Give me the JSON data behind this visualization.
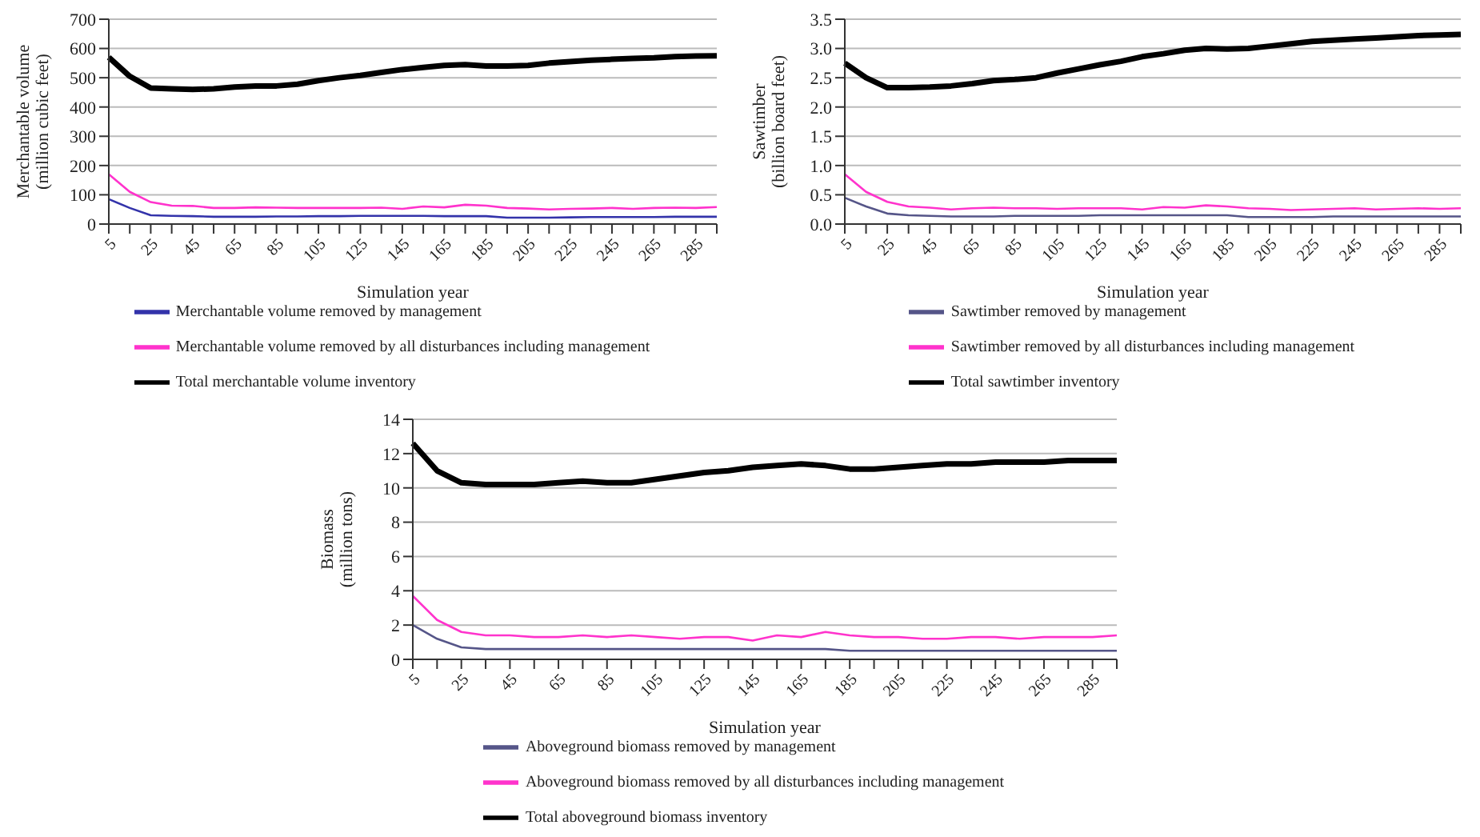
{
  "chart_data": [
    {
      "type": "line",
      "xlabel": "Simulation year",
      "ylabel": "Merchantable volume\n(million cubic feet)",
      "categories": [
        "5",
        null,
        "25",
        null,
        "45",
        null,
        "65",
        null,
        "85",
        null,
        "105",
        null,
        "125",
        null,
        "145",
        null,
        "165",
        null,
        "185",
        null,
        "205",
        null,
        "225",
        null,
        "245",
        null,
        "265",
        null,
        "285",
        null
      ],
      "ylim": [
        0,
        700
      ],
      "yticks": [
        0,
        100,
        200,
        300,
        400,
        500,
        600,
        700
      ],
      "grid": "y",
      "legend": "bottom",
      "series": [
        {
          "name": "Merchantable volume removed by management",
          "color": "#3333aa",
          "values": [
            85,
            55,
            30,
            28,
            27,
            25,
            25,
            25,
            26,
            26,
            27,
            27,
            28,
            28,
            28,
            28,
            27,
            27,
            27,
            22,
            22,
            22,
            23,
            24,
            24,
            24,
            24,
            25,
            25,
            25
          ]
        },
        {
          "name": "Merchantable volume removed by all disturbances including management",
          "color": "#ff33cc",
          "values": [
            170,
            110,
            75,
            63,
            62,
            55,
            55,
            57,
            56,
            55,
            55,
            55,
            55,
            56,
            52,
            60,
            57,
            66,
            63,
            55,
            53,
            50,
            52,
            53,
            55,
            52,
            55,
            56,
            55,
            58
          ]
        },
        {
          "name": "Total merchantable volume inventory",
          "color": "#000000",
          "values": [
            570,
            505,
            465,
            462,
            460,
            462,
            468,
            472,
            472,
            478,
            490,
            500,
            508,
            518,
            528,
            535,
            542,
            545,
            540,
            540,
            542,
            550,
            555,
            560,
            563,
            566,
            568,
            572,
            574,
            575
          ]
        }
      ]
    },
    {
      "type": "line",
      "xlabel": "Simulation year",
      "ylabel": "Sawtimber\n(billion board feet)",
      "categories": [
        "5",
        null,
        "25",
        null,
        "45",
        null,
        "65",
        null,
        "85",
        null,
        "105",
        null,
        "125",
        null,
        "145",
        null,
        "165",
        null,
        "185",
        null,
        "205",
        null,
        "225",
        null,
        "245",
        null,
        "265",
        null,
        "285",
        null
      ],
      "ylim": [
        0,
        3.5
      ],
      "yticks": [
        {
          "value": 0,
          "label": "0.0"
        },
        {
          "value": 0.5,
          "label": "0.5"
        },
        {
          "value": 1,
          "label": "1.0"
        },
        {
          "value": 1.5,
          "label": "1.5"
        },
        {
          "value": 2,
          "label": "2.0"
        },
        {
          "value": 2.5,
          "label": "2.5"
        },
        {
          "value": 3,
          "label": "3.0"
        },
        {
          "value": 3.5,
          "label": "3.5"
        }
      ],
      "grid": "y",
      "legend": "bottom",
      "series": [
        {
          "name": "Sawtimber removed by management",
          "color": "#555588",
          "values": [
            0.45,
            0.3,
            0.18,
            0.15,
            0.14,
            0.13,
            0.13,
            0.13,
            0.14,
            0.14,
            0.14,
            0.14,
            0.15,
            0.15,
            0.15,
            0.15,
            0.15,
            0.15,
            0.15,
            0.12,
            0.12,
            0.12,
            0.12,
            0.13,
            0.13,
            0.13,
            0.13,
            0.13,
            0.13,
            0.13
          ]
        },
        {
          "name": "Sawtimber removed by all disturbances including management",
          "color": "#ff33cc",
          "values": [
            0.85,
            0.55,
            0.38,
            0.3,
            0.28,
            0.25,
            0.27,
            0.28,
            0.27,
            0.27,
            0.26,
            0.27,
            0.27,
            0.27,
            0.25,
            0.29,
            0.28,
            0.32,
            0.3,
            0.27,
            0.26,
            0.24,
            0.25,
            0.26,
            0.27,
            0.25,
            0.26,
            0.27,
            0.26,
            0.27
          ]
        },
        {
          "name": "Total sawtimber inventory",
          "color": "#000000",
          "values": [
            2.75,
            2.5,
            2.33,
            2.33,
            2.34,
            2.36,
            2.4,
            2.45,
            2.47,
            2.5,
            2.58,
            2.65,
            2.72,
            2.78,
            2.86,
            2.91,
            2.97,
            3.0,
            2.99,
            3.0,
            3.04,
            3.08,
            3.12,
            3.14,
            3.16,
            3.18,
            3.2,
            3.22,
            3.23,
            3.24
          ]
        }
      ]
    },
    {
      "type": "line",
      "xlabel": "Simulation year",
      "ylabel": "Biomass\n(million  tons)",
      "categories": [
        "5",
        null,
        "25",
        null,
        "45",
        null,
        "65",
        null,
        "85",
        null,
        "105",
        null,
        "125",
        null,
        "145",
        null,
        "165",
        null,
        "185",
        null,
        "205",
        null,
        "225",
        null,
        "245",
        null,
        "265",
        null,
        "285",
        null
      ],
      "ylim": [
        0,
        14
      ],
      "yticks": [
        0,
        2,
        4,
        6,
        8,
        10,
        12,
        14
      ],
      "grid": "y",
      "legend": "bottom",
      "series": [
        {
          "name": "Aboveground biomass removed by management",
          "color": "#555588",
          "values": [
            2.0,
            1.2,
            0.7,
            0.6,
            0.6,
            0.6,
            0.6,
            0.6,
            0.6,
            0.6,
            0.6,
            0.6,
            0.6,
            0.6,
            0.6,
            0.6,
            0.6,
            0.6,
            0.5,
            0.5,
            0.5,
            0.5,
            0.5,
            0.5,
            0.5,
            0.5,
            0.5,
            0.5,
            0.5,
            0.5
          ]
        },
        {
          "name": "Aboveground biomass removed by all disturbances including management",
          "color": "#ff33cc",
          "values": [
            3.7,
            2.3,
            1.6,
            1.4,
            1.4,
            1.3,
            1.3,
            1.4,
            1.3,
            1.4,
            1.3,
            1.2,
            1.3,
            1.3,
            1.1,
            1.4,
            1.3,
            1.6,
            1.4,
            1.3,
            1.3,
            1.2,
            1.2,
            1.3,
            1.3,
            1.2,
            1.3,
            1.3,
            1.3,
            1.4
          ]
        },
        {
          "name": "Total aboveground biomass inventory",
          "color": "#000000",
          "values": [
            12.6,
            11.0,
            10.3,
            10.2,
            10.2,
            10.2,
            10.3,
            10.4,
            10.3,
            10.3,
            10.5,
            10.7,
            10.9,
            11.0,
            11.2,
            11.3,
            11.4,
            11.3,
            11.1,
            11.1,
            11.2,
            11.3,
            11.4,
            11.4,
            11.5,
            11.5,
            11.5,
            11.6,
            11.6,
            11.6
          ]
        }
      ]
    }
  ]
}
